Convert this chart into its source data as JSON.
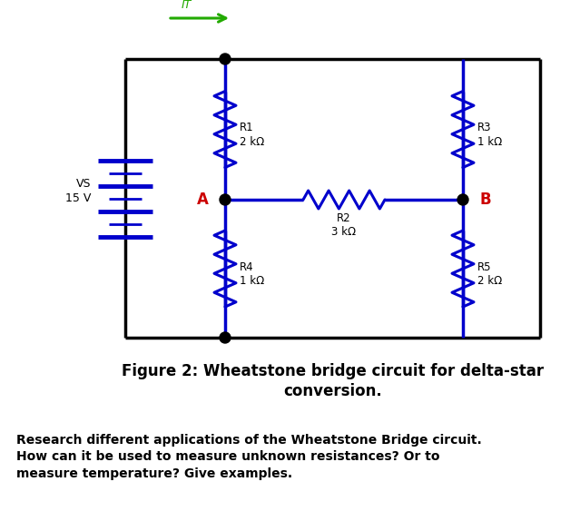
{
  "bg_color": "#ffffff",
  "circuit_color": "#0000cc",
  "frame_color": "#000000",
  "label_A_color": "#cc0000",
  "label_B_color": "#cc0000",
  "arrow_color": "#22aa00",
  "resistor_labels": {
    "R1": "2 kΩ",
    "R2": "3 kΩ",
    "R3": "1 kΩ",
    "R4": "1 kΩ",
    "R5": "2 kΩ"
  },
  "vs_label": "VS\n15 V",
  "it_label": "IT",
  "figure_caption": "Figure 2: Wheatstone bridge circuit for delta-star\nconversion.",
  "body_text": "Research different applications of the Wheatstone Bridge circuit.\nHow can it be used to measure unknown resistances? Or to\nmeasure temperature? Give examples.",
  "figsize": [
    6.39,
    5.74
  ],
  "dpi": 100
}
